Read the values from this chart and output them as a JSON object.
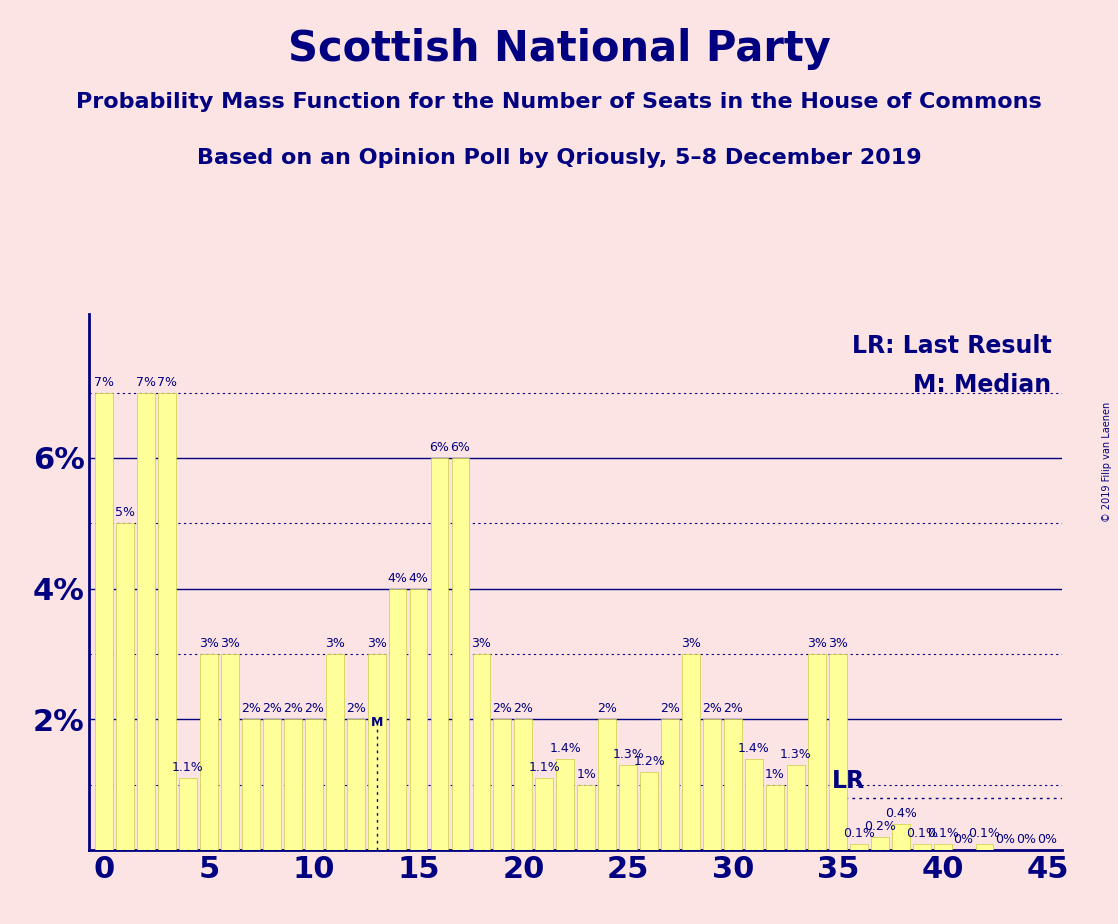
{
  "title": "Scottish National Party",
  "subtitle1": "Probability Mass Function for the Number of Seats in the House of Commons",
  "subtitle2": "Based on an Opinion Poll by Qriously, 5–8 December 2019",
  "copyright": "© 2019 Filip van Laenen",
  "background_color": "#fce4e4",
  "bar_color": "#ffff99",
  "bar_edge_color": "#cccc44",
  "title_color": "#000080",
  "axis_color": "#000080",
  "grid_color": "#000080",
  "lr_seat": 35,
  "lr_prob": 0.8,
  "median_seat": 13,
  "seats": [
    0,
    1,
    2,
    3,
    4,
    5,
    6,
    7,
    8,
    9,
    10,
    11,
    12,
    13,
    14,
    15,
    16,
    17,
    18,
    19,
    20,
    21,
    22,
    23,
    24,
    25,
    26,
    27,
    28,
    29,
    30,
    31,
    32,
    33,
    34,
    35,
    36,
    37,
    38,
    39,
    40,
    41,
    42,
    43,
    44,
    45
  ],
  "probs": [
    7.0,
    5.0,
    7.0,
    7.0,
    1.1,
    3.0,
    3.0,
    2.0,
    2.0,
    2.0,
    2.0,
    3.0,
    2.0,
    3.0,
    4.0,
    4.0,
    6.0,
    6.0,
    3.0,
    2.0,
    2.0,
    1.1,
    1.4,
    1.0,
    2.0,
    1.3,
    1.2,
    2.0,
    3.0,
    2.0,
    2.0,
    1.4,
    1.0,
    1.3,
    3.0,
    3.0,
    0.1,
    0.2,
    0.4,
    0.1,
    0.1,
    0.0,
    0.1,
    0.0,
    0.0,
    0.0
  ],
  "yticks": [
    0,
    2,
    4,
    6
  ],
  "ylim": [
    0,
    8.2
  ],
  "xlim": [
    -0.7,
    45.7
  ],
  "xticks": [
    0,
    5,
    10,
    15,
    20,
    25,
    30,
    35,
    40,
    45
  ],
  "title_fontsize": 30,
  "subtitle_fontsize": 16,
  "tick_fontsize": 22,
  "bar_label_fontsize": 9,
  "legend_fontsize": 17
}
